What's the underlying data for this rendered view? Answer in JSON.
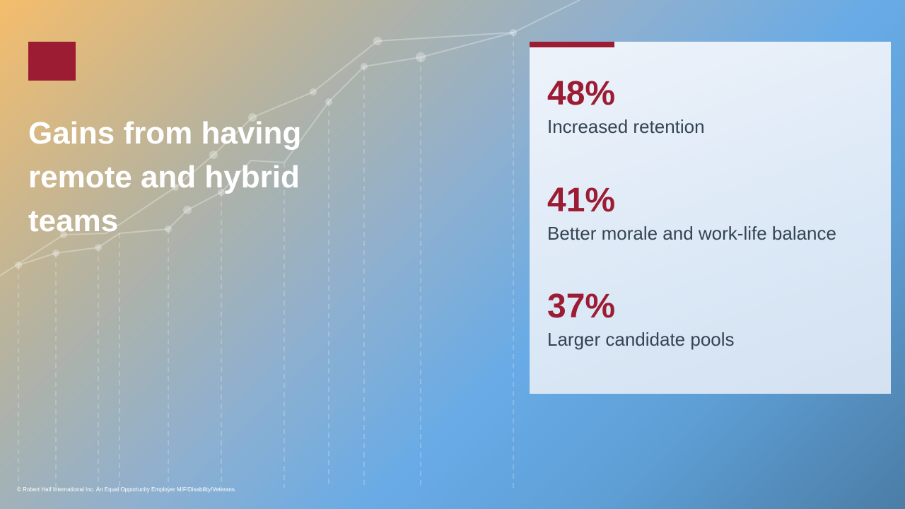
{
  "slide": {
    "title": "Gains from having remote and hybrid teams",
    "stats": [
      {
        "value": "48%",
        "label": "Increased retention"
      },
      {
        "value": "41%",
        "label": "Better morale and work-life  balance"
      },
      {
        "value": "37%",
        "label": "Larger candidate pools"
      }
    ],
    "footer": "© Robert Half International  Inc. An Equal Opportunity  Employer  M/F/Disability/Veterans."
  },
  "colors": {
    "accent": "#9c1c33",
    "title_text": "#ffffff",
    "label_text": "#344452"
  }
}
